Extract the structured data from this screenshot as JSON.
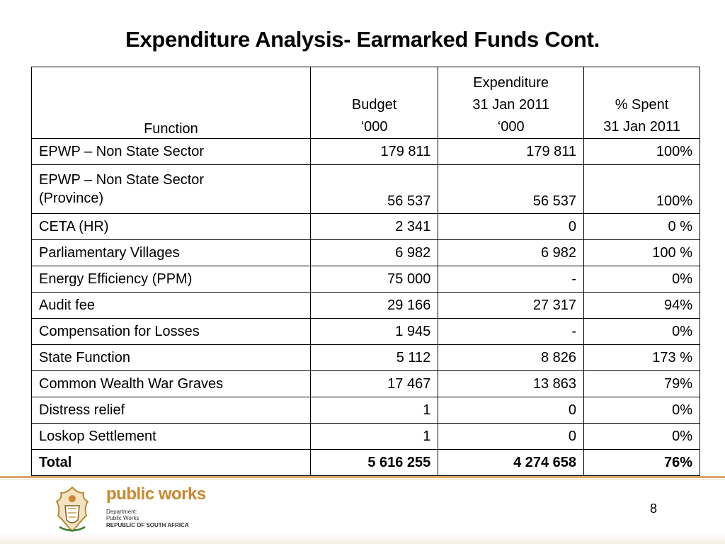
{
  "title": "Expenditure Analysis- Earmarked Funds Cont.",
  "table": {
    "headers": {
      "function": "Function",
      "budget": "Budget\n‘000",
      "expenditure": "Expenditure\n31 Jan 2011\n‘000",
      "spent": "% Spent\n31 Jan 2011"
    },
    "rows": [
      {
        "function": "EPWP – Non State Sector",
        "budget": "179 811",
        "expenditure": "179 811",
        "spent": "100%"
      },
      {
        "function": "EPWP – Non State Sector\n(Province)",
        "budget": "56 537",
        "expenditure": "56 537",
        "spent": "100%"
      },
      {
        "function": "CETA (HR)",
        "budget": "2 341",
        "expenditure": "0",
        "spent": "0 %"
      },
      {
        "function": "Parliamentary Villages",
        "budget": "6 982",
        "expenditure": "6 982",
        "spent": "100 %"
      },
      {
        "function": "Energy Efficiency (PPM)",
        "budget": "75 000",
        "expenditure": "-",
        "spent": "0%"
      },
      {
        "function": "Audit fee",
        "budget": "29 166",
        "expenditure": "27 317",
        "spent": "94%"
      },
      {
        "function": "Compensation for Losses",
        "budget": "1 945",
        "expenditure": "-",
        "spent": "0%"
      },
      {
        "function": "State Function",
        "budget": "5 112",
        "expenditure": "8 826",
        "spent": "173 %"
      },
      {
        "function": "Common Wealth War Graves",
        "budget": "17 467",
        "expenditure": "13 863",
        "spent": "79%"
      },
      {
        "function": "Distress relief",
        "budget": "1",
        "expenditure": "0",
        "spent": "0%"
      },
      {
        "function": "Loskop Settlement",
        "budget": "1",
        "expenditure": "0",
        "spent": "0%"
      }
    ],
    "total": {
      "function": "Total",
      "budget": "5 616 255",
      "expenditure": "4 274 658",
      "spent": "76%"
    }
  },
  "footer": {
    "logo_name": "public works",
    "logo_line1": "Department:",
    "logo_line2": "Public Works",
    "logo_line3": "REPUBLIC OF SOUTH AFRICA",
    "page_number": "8"
  },
  "colors": {
    "accent": "#d9a86b",
    "logo_text": "#c9882f",
    "coat_of_arms": "#b8892f"
  }
}
